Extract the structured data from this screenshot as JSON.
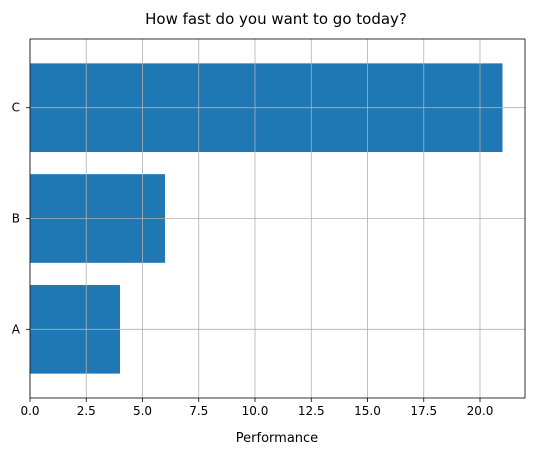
{
  "chart_data": {
    "type": "bar",
    "orientation": "horizontal",
    "title": "How fast do you want to go today?",
    "xlabel": "Performance",
    "ylabel": "",
    "categories": [
      "A",
      "B",
      "C"
    ],
    "values": [
      4,
      6,
      21
    ],
    "xlim": [
      0,
      22
    ],
    "x_ticks": [
      "0.0",
      "2.5",
      "5.0",
      "7.5",
      "10.0",
      "12.5",
      "15.0",
      "17.5",
      "20.0"
    ],
    "grid": true,
    "bar_color": "#1f77b4",
    "grid_color": "#b0b0b0"
  }
}
